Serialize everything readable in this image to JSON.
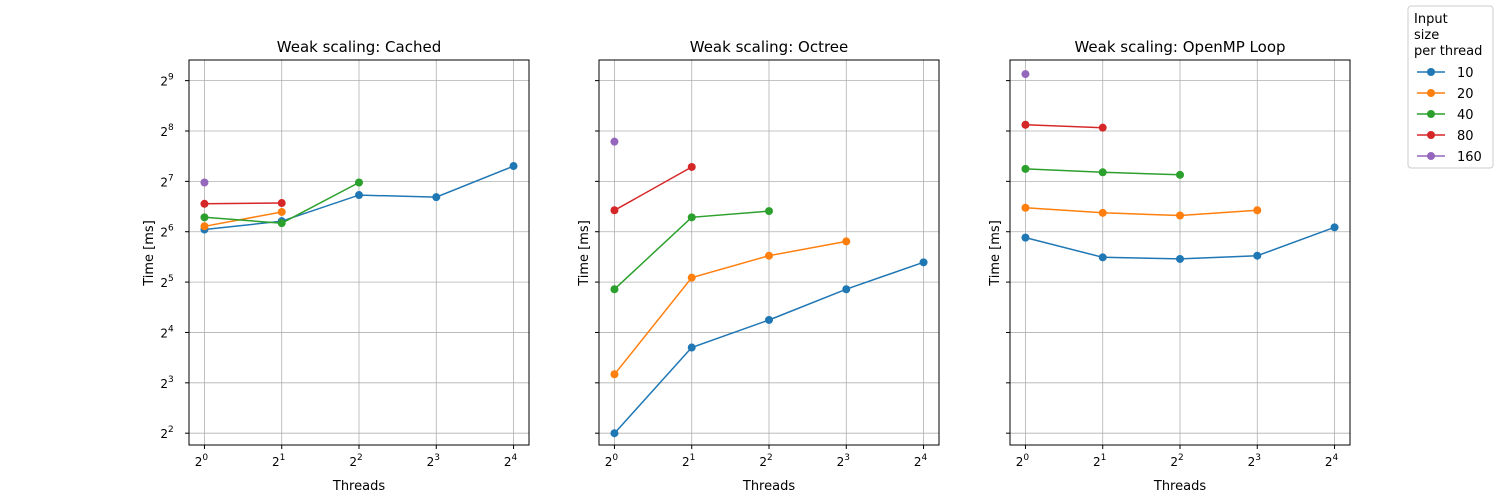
{
  "legend": {
    "title_lines": [
      "Input",
      "size",
      "per thread"
    ],
    "position": "outside-right-top"
  },
  "colors": {
    "10": "#1f77b4",
    "20": "#ff7f0e",
    "40": "#2ca02c",
    "80": "#d62728",
    "160": "#9467bd"
  },
  "chart_data": [
    {
      "type": "line",
      "title": "Weak scaling: Cached",
      "xlabel": "Threads",
      "ylabel": "Time [ms]",
      "xscale": "log2",
      "yscale": "log2",
      "grid": true,
      "xticks": [
        1,
        2,
        4,
        8,
        16
      ],
      "yticks": [
        4,
        8,
        16,
        32,
        64,
        128,
        256,
        512
      ],
      "ylim": [
        3.4,
        680
      ],
      "series": [
        {
          "name": "10",
          "x": [
            1,
            2,
            4,
            8,
            16
          ],
          "y": [
            66,
            74,
            106,
            103,
            158
          ]
        },
        {
          "name": "20",
          "x": [
            1,
            2
          ],
          "y": [
            69,
            84
          ]
        },
        {
          "name": "40",
          "x": [
            1,
            2,
            4
          ],
          "y": [
            78,
            72,
            126
          ]
        },
        {
          "name": "80",
          "x": [
            1,
            2
          ],
          "y": [
            94,
            95
          ]
        },
        {
          "name": "160",
          "x": [
            1
          ],
          "y": [
            126
          ]
        }
      ]
    },
    {
      "type": "line",
      "title": "Weak scaling: Octree",
      "xlabel": "Threads",
      "ylabel": "Time [ms]",
      "xscale": "log2",
      "yscale": "log2",
      "grid": true,
      "xticks": [
        1,
        2,
        4,
        8,
        16
      ],
      "yticks": [
        4,
        8,
        16,
        32,
        64,
        128,
        256,
        512
      ],
      "ylim": [
        3.4,
        680
      ],
      "series": [
        {
          "name": "10",
          "x": [
            1,
            2,
            4,
            8,
            16
          ],
          "y": [
            4,
            13,
            19,
            29,
            42
          ]
        },
        {
          "name": "20",
          "x": [
            1,
            2,
            4,
            8
          ],
          "y": [
            9,
            34,
            46,
            56
          ]
        },
        {
          "name": "40",
          "x": [
            1,
            2,
            4
          ],
          "y": [
            29,
            78,
            85
          ]
        },
        {
          "name": "80",
          "x": [
            1,
            2
          ],
          "y": [
            86,
            156
          ]
        },
        {
          "name": "160",
          "x": [
            1
          ],
          "y": [
            221
          ]
        }
      ]
    },
    {
      "type": "line",
      "title": "Weak scaling: OpenMP Loop",
      "xlabel": "Threads",
      "ylabel": "Time [ms]",
      "xscale": "log2",
      "yscale": "log2",
      "grid": true,
      "xticks": [
        1,
        2,
        4,
        8,
        16
      ],
      "yticks": [
        4,
        8,
        16,
        32,
        64,
        128,
        256,
        512
      ],
      "ylim": [
        3.4,
        680
      ],
      "series": [
        {
          "name": "10",
          "x": [
            1,
            2,
            4,
            8,
            16
          ],
          "y": [
            59,
            45,
            44,
            46,
            68
          ]
        },
        {
          "name": "20",
          "x": [
            1,
            2,
            4,
            8
          ],
          "y": [
            89,
            83,
            80,
            86
          ]
        },
        {
          "name": "40",
          "x": [
            1,
            2,
            4
          ],
          "y": [
            152,
            145,
            140
          ]
        },
        {
          "name": "80",
          "x": [
            1,
            2
          ],
          "y": [
            279,
            268
          ]
        },
        {
          "name": "160",
          "x": [
            1
          ],
          "y": [
            560
          ]
        }
      ]
    }
  ]
}
